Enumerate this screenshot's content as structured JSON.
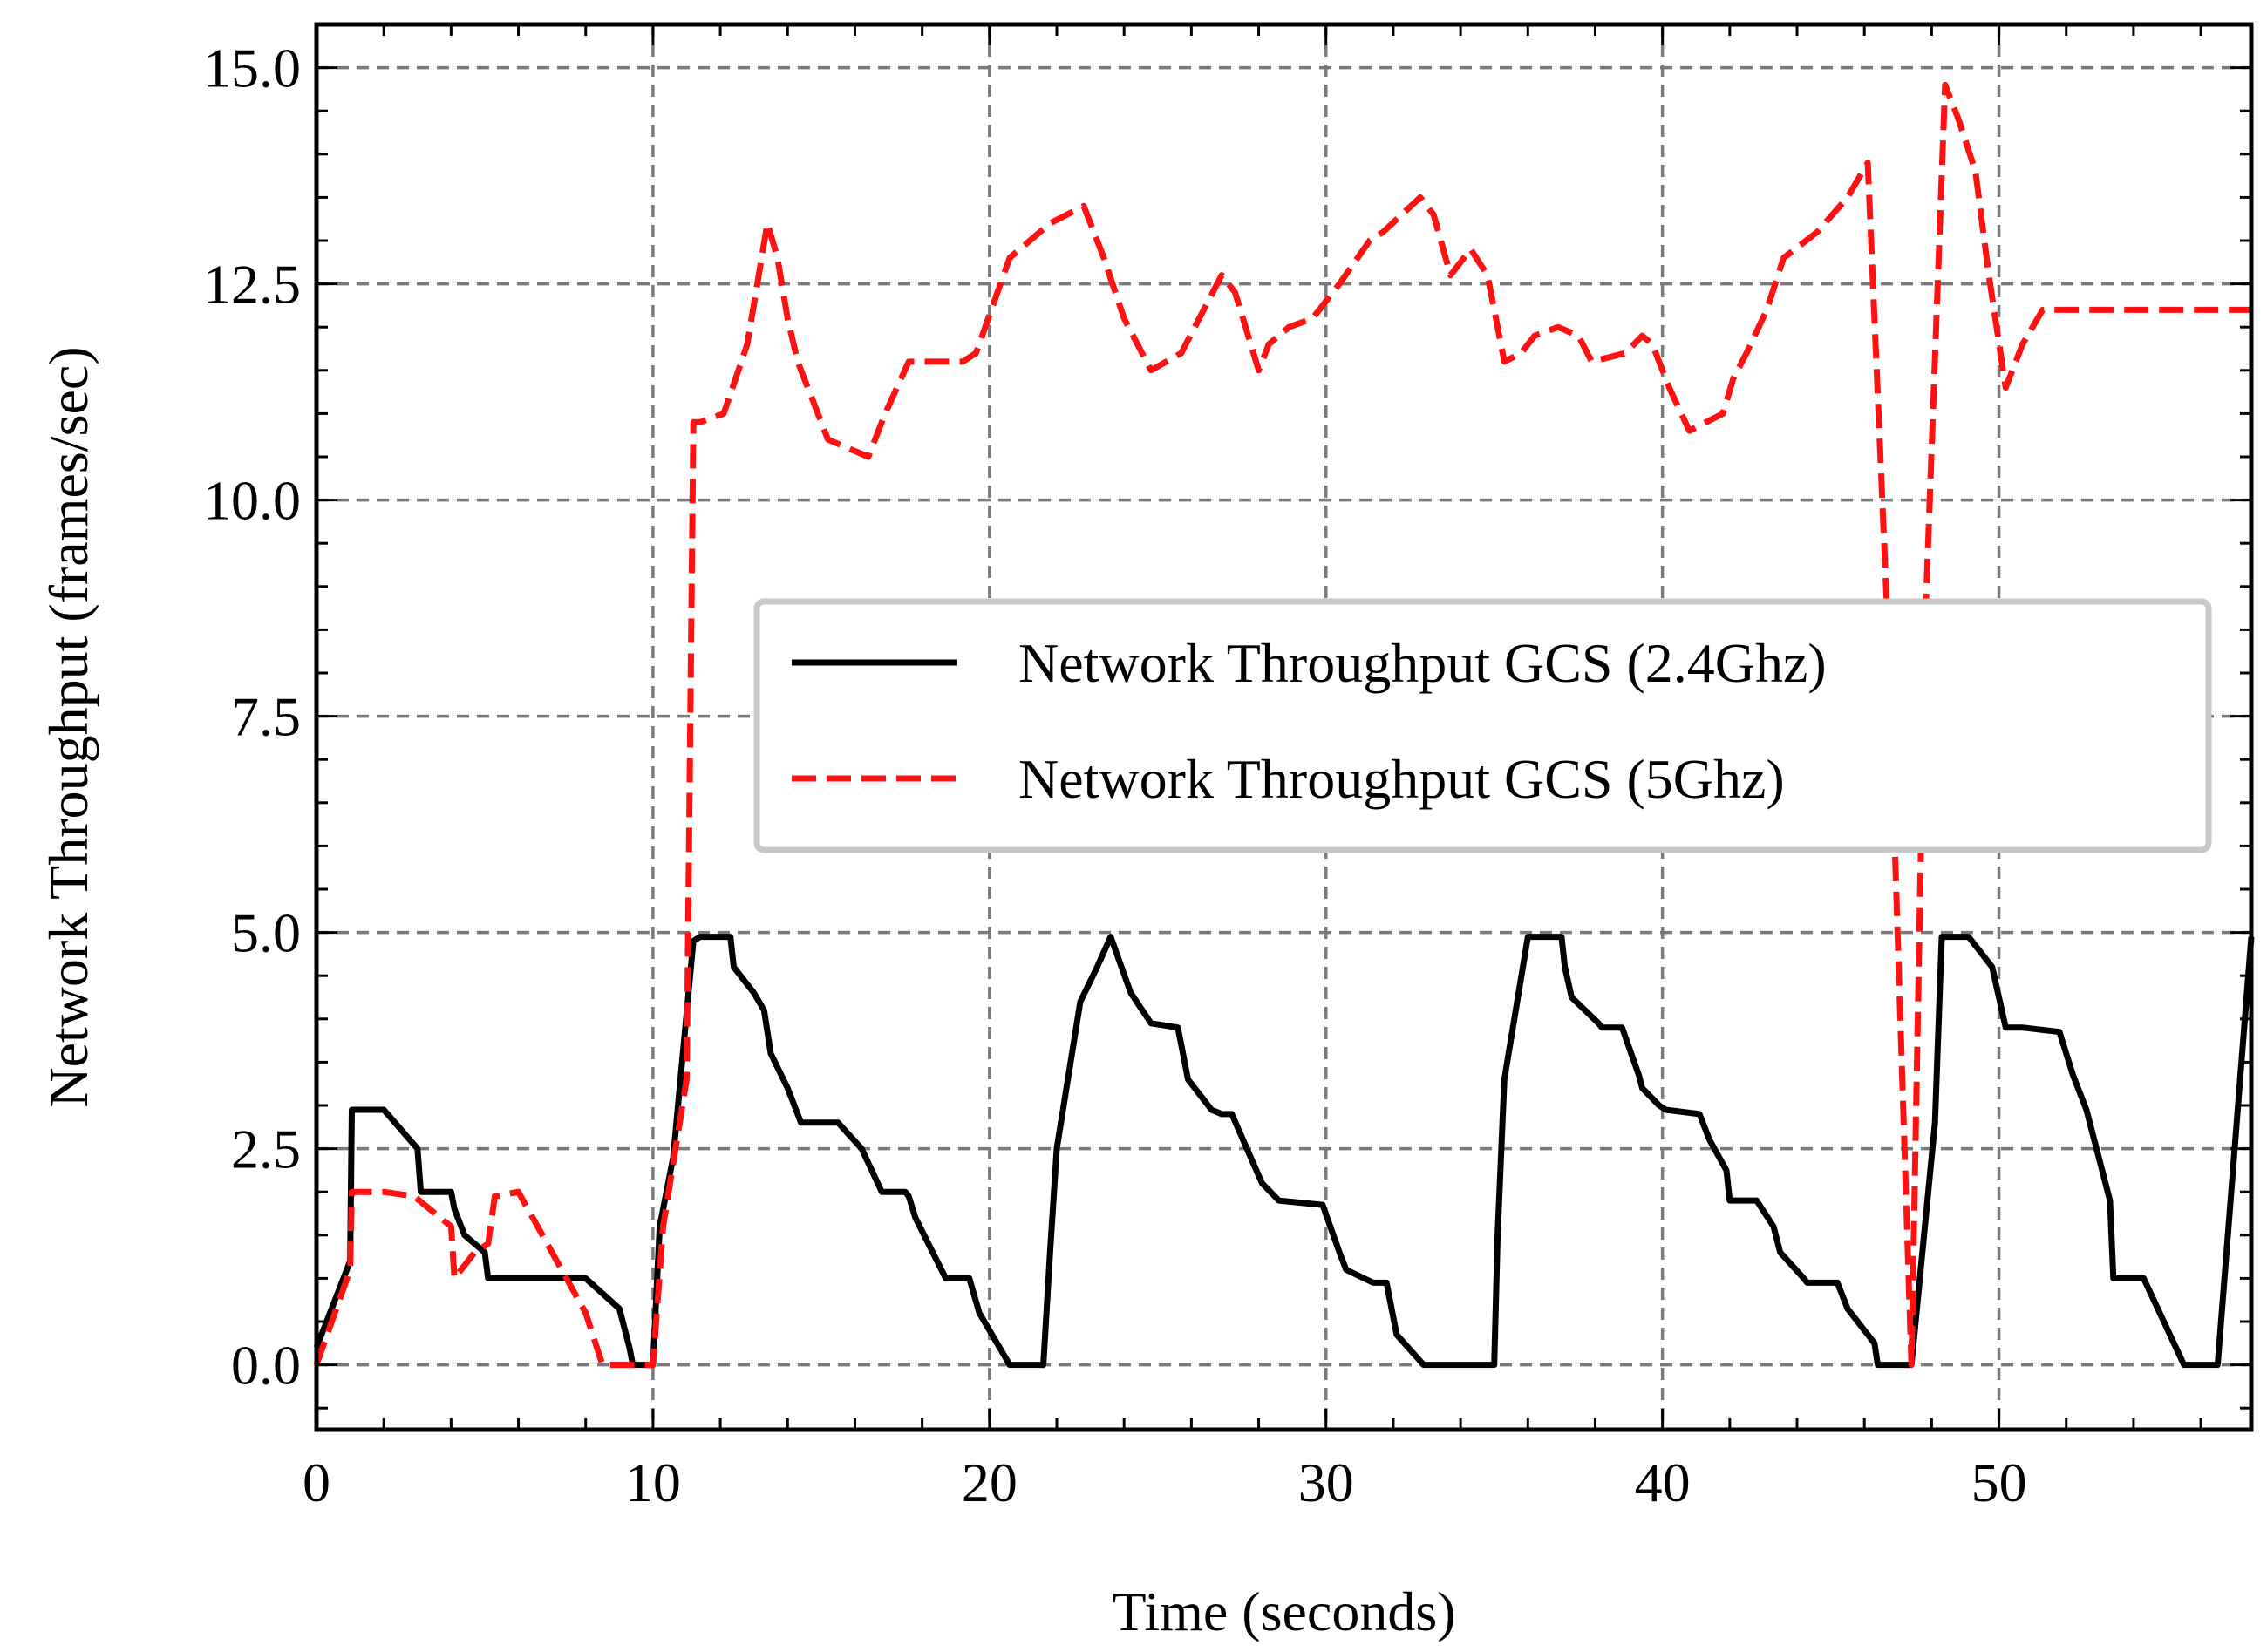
{
  "chart_data": {
    "type": "line",
    "title": "",
    "xlabel": "Time (seconds)",
    "ylabel": "Network Throughput (frames/sec)",
    "xlim": [
      0,
      57.5
    ],
    "ylim": [
      -0.75,
      15.5
    ],
    "grid": true,
    "legend_position": "center-right",
    "x_ticks": [
      0,
      10,
      20,
      30,
      40,
      50
    ],
    "x_tick_labels": [
      "0",
      "10",
      "20",
      "30",
      "40",
      "50"
    ],
    "y_ticks": [
      0,
      2.5,
      5,
      7.5,
      10,
      12.5,
      15
    ],
    "y_tick_labels": [
      "0.0",
      "2.5",
      "5.0",
      "7.5",
      "10.0",
      "12.5",
      "15.0"
    ],
    "series": [
      {
        "name": "Network Throughput GCS (2.4Ghz)",
        "color": "#000000",
        "style": "solid",
        "x": [
          0,
          1,
          1.05,
          2,
          3,
          3.1,
          4,
          4.1,
          4.4,
          5,
          5.1,
          6,
          8,
          9,
          9.3,
          9.4,
          10,
          10.2,
          10.6,
          11.2,
          11.4,
          12.3,
          12.4,
          13,
          13.3,
          13.5,
          14,
          14.4,
          14.7,
          15.5,
          16.2,
          16.8,
          17.5,
          17.6,
          17.8,
          18.7,
          19.4,
          19.7,
          20.6,
          21.6,
          21.8,
          22,
          22.7,
          23.2,
          23.6,
          24.2,
          24.8,
          25.6,
          25.9,
          26.6,
          26.9,
          27.2,
          28.1,
          28.6,
          29.9,
          30.4,
          30.6,
          31.4,
          31.8,
          32.1,
          32.9,
          35,
          35.1,
          35.3,
          36,
          37,
          37.1,
          37.3,
          38.1,
          38.2,
          38.8,
          39.3,
          39.4,
          39.9,
          40.1,
          41.1,
          41.4,
          41.9,
          42,
          42.8,
          43.3,
          43.5,
          44.2,
          44.3,
          45.2,
          45.5,
          46.3,
          46.4,
          47.4,
          48.1,
          48.3,
          49.1,
          49.8,
          50.2,
          50.7,
          51.8,
          52.2,
          52.6,
          53.3,
          53.4,
          54.3,
          55.5,
          56.5,
          57.5
        ],
        "values": [
          0.2,
          1.2,
          2.95,
          2.95,
          2.5,
          2.0,
          2.0,
          1.8,
          1.5,
          1.3,
          1.0,
          1.0,
          1.0,
          0.65,
          0.2,
          0.0,
          0.0,
          1.6,
          2.4,
          4.9,
          4.95,
          4.95,
          4.6,
          4.3,
          4.1,
          3.6,
          3.2,
          2.8,
          2.8,
          2.8,
          2.5,
          2.0,
          2.0,
          1.95,
          1.7,
          1.0,
          1.0,
          0.6,
          0.0,
          0.0,
          1.3,
          2.5,
          4.2,
          4.6,
          4.95,
          4.3,
          3.95,
          3.9,
          3.3,
          2.95,
          2.9,
          2.9,
          2.1,
          1.9,
          1.85,
          1.3,
          1.1,
          0.95,
          0.95,
          0.35,
          0.0,
          0.0,
          1.5,
          3.3,
          4.95,
          4.95,
          4.6,
          4.25,
          3.95,
          3.9,
          3.9,
          3.35,
          3.2,
          3.0,
          2.95,
          2.9,
          2.6,
          2.25,
          1.9,
          1.9,
          1.6,
          1.3,
          1.0,
          0.95,
          0.95,
          0.65,
          0.25,
          0.0,
          0.0,
          2.8,
          4.95,
          4.95,
          4.6,
          3.9,
          3.9,
          3.85,
          3.35,
          2.95,
          1.9,
          1.0,
          1.0,
          0.0,
          0.0,
          4.95
        ]
      },
      {
        "name": "Network Throughput GCS (5Ghz)",
        "color": "#ff1111",
        "style": "dashed",
        "x": [
          0,
          1,
          1.05,
          2,
          2.9,
          4,
          4.1,
          4.7,
          5.1,
          5.3,
          6,
          7,
          8,
          8.5,
          10,
          10.3,
          11,
          11.2,
          11.4,
          12.1,
          12.8,
          13.4,
          13.7,
          14,
          14.3,
          15.2,
          15.8,
          16.4,
          16.9,
          17.6,
          19.2,
          19.6,
          20.6,
          21.8,
          22.8,
          23.4,
          24,
          24.8,
          25.7,
          26.9,
          27.3,
          28,
          28.3,
          28.9,
          29.6,
          30.4,
          31.3,
          31.7,
          32.8,
          33.2,
          33.7,
          34.3,
          34.8,
          35.3,
          35.8,
          36.2,
          36.9,
          37.5,
          37.9,
          38.9,
          39.4,
          39.7,
          40.2,
          40.8,
          41.8,
          42.1,
          42.5,
          43.1,
          43.6,
          44.6,
          45.5,
          46.1,
          46.7,
          47.4,
          47.8,
          48.4,
          48.8,
          49.3,
          49.7,
          50.2,
          50.7,
          51.3,
          52,
          52.8,
          53.3,
          57.5
        ],
        "values": [
          0.0,
          1.1,
          2.0,
          2.0,
          1.95,
          1.6,
          1.0,
          1.3,
          1.4,
          1.95,
          2.0,
          1.3,
          0.6,
          0.0,
          0.0,
          1.6,
          3.3,
          10.9,
          10.9,
          11.0,
          11.8,
          13.2,
          12.8,
          12.1,
          11.6,
          10.7,
          10.6,
          10.5,
          11.0,
          11.6,
          11.6,
          11.7,
          12.8,
          13.2,
          13.4,
          12.8,
          12.1,
          11.5,
          11.7,
          12.6,
          12.4,
          11.5,
          11.8,
          12.0,
          12.1,
          12.5,
          13.0,
          13.1,
          13.5,
          13.3,
          12.6,
          12.9,
          12.6,
          11.6,
          11.7,
          11.9,
          12.0,
          11.9,
          11.6,
          11.7,
          11.9,
          11.8,
          11.3,
          10.8,
          11.0,
          11.4,
          11.7,
          12.2,
          12.8,
          13.1,
          13.5,
          13.9,
          8.5,
          0.0,
          8.5,
          14.8,
          14.4,
          13.8,
          12.6,
          11.3,
          11.8,
          12.2,
          12.2,
          12.2,
          12.2,
          12.2
        ]
      }
    ],
    "legend": [
      {
        "label": "Network Throughput GCS (2.4Ghz)",
        "color": "#000000",
        "style": "solid"
      },
      {
        "label": "Network Throughput GCS (5Ghz)",
        "color": "#ff1111",
        "style": "dashed"
      }
    ]
  }
}
